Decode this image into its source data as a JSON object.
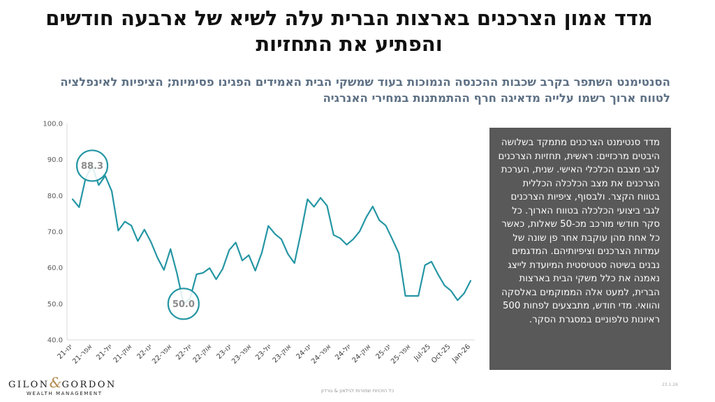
{
  "title": "מדד אמון הצרכנים בארצות הברית עלה לשיא של ארבעה חודשים והפתיע את התחזיות",
  "subtitle": "הסנטימנט השתפר בקרב שכבות ההכנסה הנמוכות בעוד שמשקי הבית האמידים הפגינו פסימיות; הציפיות לאינפלציה לטווח ארוך רשמו עלייה מדאיגה חרף ההתמתנות במחירי האנרגיה",
  "info_box": {
    "text": "מדד סנטימנט הצרכנים מתמקד בשלושה היבטים מרכזיים: ראשית, תחזיות הצרכנים לגבי מצבם הכלכלי האישי. שנית, הערכת הצרכנים את מצב הכלכלה הכללית בטווח הקצר. ולבסוף, ציפיות הצרכנים לגבי ביצועי הכלכלה בטווח הארוך. כל סקר חודשי מורכב מכ-50 שאלות, כאשר כל אחת מהן עוקבת אחר פן שונה של עמדות הצרכנים וציפיותיהם. המדגמים נבנים בשיטה סטטיסטית המיועדת לייצג נאמנה את כלל משקי הבית בארצות הברית, למעט אלה הממוקמים באלסקה והוואי. מדי חודש, מתבצעים לפחות 500 ראיונות טלפוניים במסגרת הסקר."
  },
  "logo": {
    "name_left": "GILON",
    "ampersand": "&",
    "name_right": "GORDON",
    "tagline": "WEALTH MANAGEMENT"
  },
  "footer": {
    "rights": "כל הזכויות שמורות לגילאון & גורדון",
    "date": "23.1.26"
  },
  "colors": {
    "line": "#2596a4",
    "box": "#595959",
    "subtitle": "#5e7185"
  },
  "chart_data": {
    "type": "line",
    "title": "",
    "xlabel": "",
    "ylabel": "",
    "ylim": [
      40,
      100
    ],
    "yticks": [
      "100.0",
      "90.0",
      "80.0",
      "70.0",
      "60.0",
      "50.0",
      "40.0"
    ],
    "x_tick_labels": [
      "ינו-21",
      "אפר-21",
      "יול-21",
      "אוק-21",
      "ינו-22",
      "אפר-22",
      "יול-22",
      "אוק-22",
      "ינו-23",
      "אפר-23",
      "יול-23",
      "אוק-23",
      "ינו-24",
      "אפר-24",
      "יול-24",
      "אוק-24",
      "ינו-25",
      "אפר-25",
      "Jul-25",
      "Oct-25",
      "Jan-26"
    ],
    "series": [
      {
        "name": "מדד אמון הצרכנים",
        "values": [
          79.0,
          76.8,
          84.9,
          88.3,
          82.9,
          85.5,
          81.2,
          70.3,
          72.8,
          71.7,
          67.4,
          70.6,
          67.2,
          62.8,
          59.4,
          65.2,
          58.4,
          50.0,
          51.5,
          58.2,
          58.6,
          59.9,
          56.8,
          59.7,
          64.9,
          67.0,
          62.0,
          63.5,
          59.2,
          64.2,
          71.6,
          69.4,
          67.9,
          63.8,
          61.3,
          69.7,
          79.0,
          76.9,
          79.4,
          77.2,
          69.1,
          68.2,
          66.4,
          67.9,
          70.1,
          74.0,
          77.0,
          73.2,
          71.7,
          67.9,
          64.0,
          52.2,
          52.2,
          52.2,
          60.7,
          61.7,
          58.2,
          55.1,
          53.6,
          51.0,
          52.9,
          56.4
        ]
      }
    ],
    "annotations": [
      {
        "label": "88.3",
        "value": 88.3,
        "index": 3
      },
      {
        "label": "50.0",
        "value": 50.0,
        "index": 17
      }
    ]
  }
}
